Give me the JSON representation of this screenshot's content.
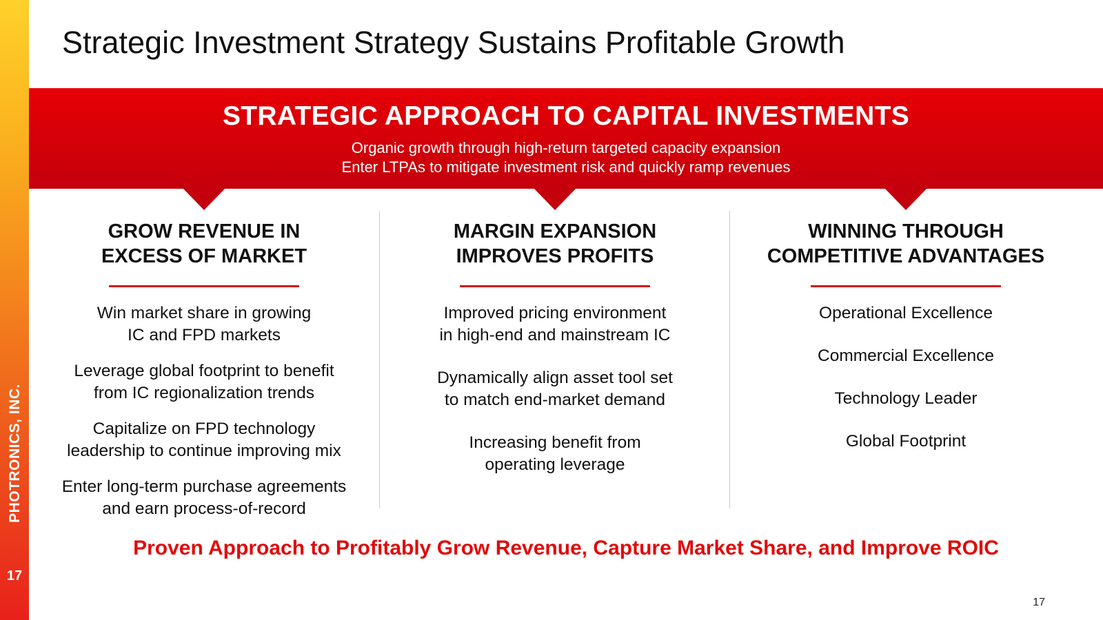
{
  "slide": {
    "title": "Strategic Investment Strategy Sustains Profitable Growth",
    "page_number": "17"
  },
  "sidebar": {
    "company": "PHOTRONICS, INC.",
    "page_number": "17"
  },
  "banner": {
    "title": "STRATEGIC APPROACH TO CAPITAL INVESTMENTS",
    "subtitle_line1": "Organic growth through high-return targeted capacity expansion",
    "subtitle_line2": "Enter LTPAs to mitigate investment risk and quickly ramp revenues"
  },
  "columns": [
    {
      "heading_line1": "GROW REVENUE IN",
      "heading_line2": "EXCESS OF MARKET",
      "items": [
        {
          "line1": "Win market share in growing",
          "line2": "IC and FPD markets"
        },
        {
          "line1": "Leverage global footprint to benefit",
          "line2": "from IC regionalization trends"
        },
        {
          "line1": "Capitalize on FPD technology",
          "line2": "leadership to continue improving mix"
        },
        {
          "line1": "Enter long-term purchase agreements",
          "line2": "and earn process-of-record"
        }
      ]
    },
    {
      "heading_line1": "MARGIN EXPANSION",
      "heading_line2": "IMPROVES PROFITS",
      "items": [
        {
          "line1": "Improved pricing environment",
          "line2": "in high-end and mainstream IC"
        },
        {
          "line1": "Dynamically align asset tool set",
          "line2": "to match end-market demand"
        },
        {
          "line1": "Increasing benefit from",
          "line2": "operating leverage"
        }
      ]
    },
    {
      "heading_line1": "WINNING THROUGH",
      "heading_line2": "COMPETITIVE ADVANTAGES",
      "items": [
        {
          "line1": "Operational Excellence"
        },
        {
          "line1": "Commercial Excellence"
        },
        {
          "line1": "Technology Leader"
        },
        {
          "line1": "Global Footprint"
        }
      ]
    }
  ],
  "footer": {
    "tagline": "Proven Approach to Profitably Grow Revenue, Capture Market Share, and Improve ROIC"
  },
  "colors": {
    "accent_red": "#e60005",
    "banner_dark_red": "#c4000c",
    "sidebar_top": "#ffd12a",
    "sidebar_bottom": "#e8211b",
    "tagline_red": "#e10a0a"
  }
}
